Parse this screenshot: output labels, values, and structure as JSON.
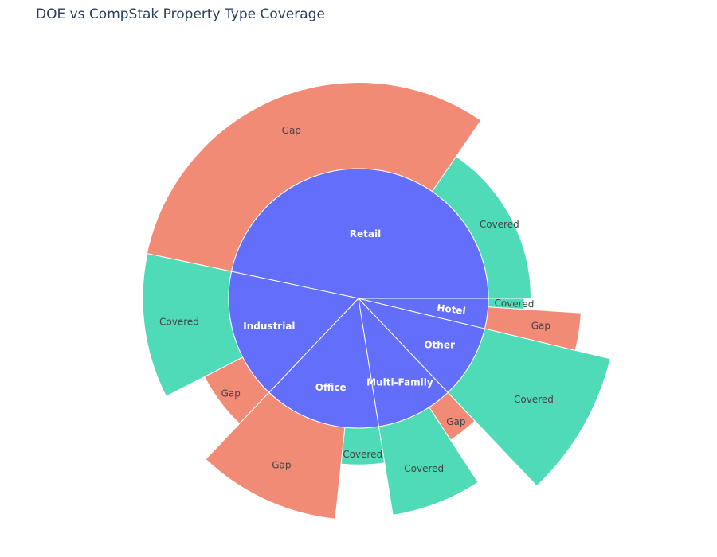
{
  "chart_data": {
    "type": "sunburst",
    "title": "DOE vs CompStak Property Type Coverage",
    "colors": {
      "parent": "#636efa",
      "Covered": "#4fdbb7",
      "Gap": "#f28b76"
    },
    "categories": [
      {
        "name": "Retail",
        "value": 11.2,
        "children": [
          {
            "name": "Covered",
            "value": 3.7
          },
          {
            "name": "Gap",
            "value": 7.5
          }
        ]
      },
      {
        "name": "Industrial",
        "value": 3.9,
        "children": [
          {
            "name": "Covered",
            "value": 2.6
          },
          {
            "name": "Gap",
            "value": 1.3
          }
        ]
      },
      {
        "name": "Office",
        "value": 3.5,
        "children": [
          {
            "name": "Gap",
            "value": 2.5
          },
          {
            "name": "Covered",
            "value": 1.0
          }
        ]
      },
      {
        "name": "Multi-Family",
        "value": 2.3,
        "children": [
          {
            "name": "Covered",
            "value": 1.6
          },
          {
            "name": "Gap",
            "value": 0.7
          }
        ]
      },
      {
        "name": "Other",
        "value": 2.2,
        "children": [
          {
            "name": "Covered",
            "value": 2.2
          }
        ]
      },
      {
        "name": "Hotel",
        "value": 0.9,
        "children": [
          {
            "name": "Gap",
            "value": 0.65
          },
          {
            "name": "Covered",
            "value": 0.25
          }
        ]
      }
    ]
  }
}
